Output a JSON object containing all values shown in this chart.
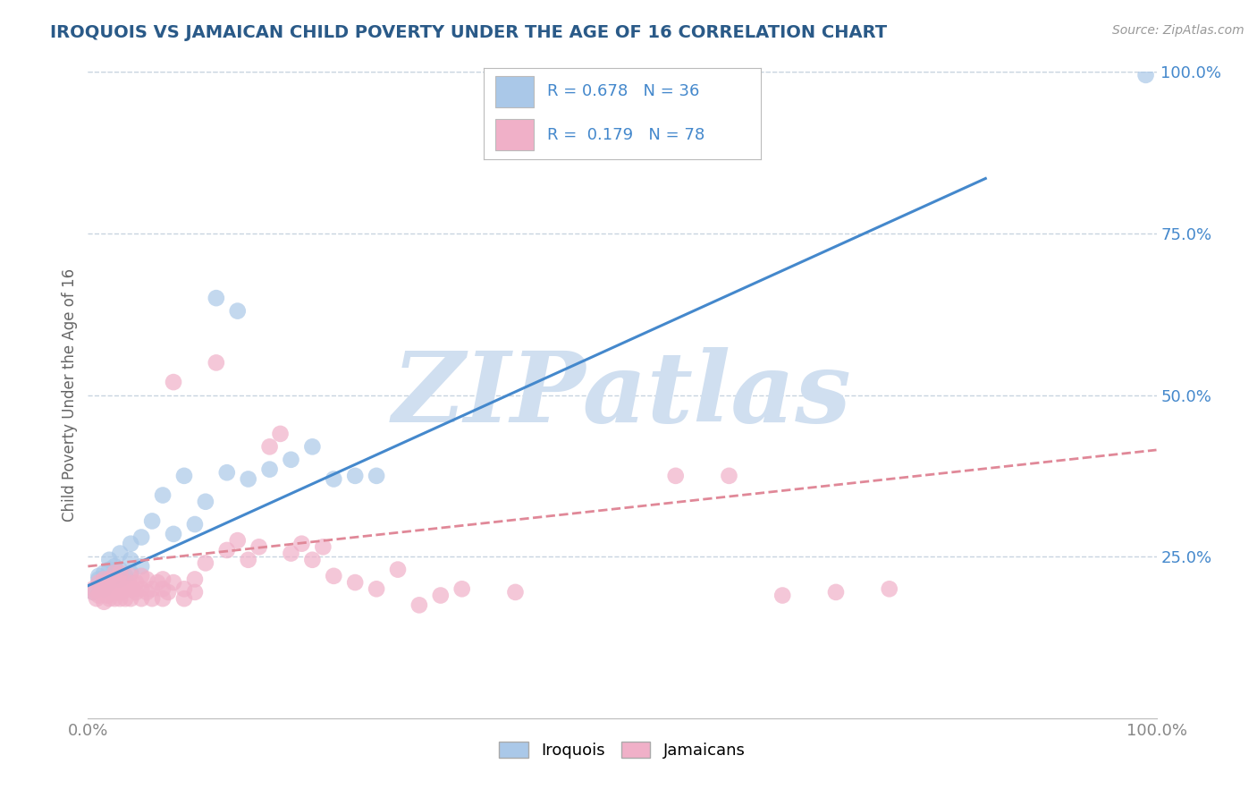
{
  "title": "IROQUOIS VS JAMAICAN CHILD POVERTY UNDER THE AGE OF 16 CORRELATION CHART",
  "source": "Source: ZipAtlas.com",
  "ylabel": "Child Poverty Under the Age of 16",
  "xlim": [
    0,
    1
  ],
  "ylim": [
    0,
    1
  ],
  "xticks": [
    0,
    0.25,
    0.5,
    0.75,
    1.0
  ],
  "xticklabels": [
    "0.0%",
    "",
    "",
    "",
    "100.0%"
  ],
  "yticks": [
    0.25,
    0.5,
    0.75,
    1.0
  ],
  "yticklabels": [
    "25.0%",
    "50.0%",
    "75.0%",
    "100.0%"
  ],
  "iroquois_color": "#aac8e8",
  "jamaicans_color": "#f0b0c8",
  "iroquois_line_color": "#4488cc",
  "jamaicans_line_color": "#e08898",
  "watermark_text": "ZIPatlas",
  "watermark_color": "#d0dff0",
  "background_color": "#ffffff",
  "grid_color": "#c8d4e0",
  "title_color": "#2a5a88",
  "tick_color": "#4488cc",
  "xtick_color": "#888888",
  "legend_text_color": "#4488cc",
  "iroquois_label": "Iroquois",
  "jamaicans_label": "Jamaicans",
  "iroq_line_x0": 0.0,
  "iroq_line_y0": 0.205,
  "iroq_line_x1": 0.84,
  "iroq_line_y1": 0.835,
  "jam_line_x0": 0.0,
  "jam_line_y0": 0.235,
  "jam_line_x1": 1.0,
  "jam_line_y1": 0.415,
  "iroq_x": [
    0.005,
    0.01,
    0.01,
    0.015,
    0.015,
    0.02,
    0.02,
    0.02,
    0.025,
    0.025,
    0.03,
    0.03,
    0.03,
    0.035,
    0.04,
    0.04,
    0.04,
    0.05,
    0.05,
    0.06,
    0.07,
    0.08,
    0.09,
    0.1,
    0.11,
    0.12,
    0.13,
    0.14,
    0.15,
    0.17,
    0.19,
    0.21,
    0.23,
    0.25,
    0.27,
    0.99
  ],
  "iroq_y": [
    0.195,
    0.215,
    0.22,
    0.2,
    0.225,
    0.21,
    0.23,
    0.245,
    0.225,
    0.235,
    0.215,
    0.23,
    0.255,
    0.22,
    0.225,
    0.245,
    0.27,
    0.235,
    0.28,
    0.305,
    0.345,
    0.285,
    0.375,
    0.3,
    0.335,
    0.65,
    0.38,
    0.63,
    0.37,
    0.385,
    0.4,
    0.42,
    0.37,
    0.375,
    0.375,
    0.995
  ],
  "jam_x": [
    0.005,
    0.005,
    0.008,
    0.01,
    0.01,
    0.012,
    0.015,
    0.015,
    0.015,
    0.018,
    0.018,
    0.02,
    0.02,
    0.02,
    0.022,
    0.025,
    0.025,
    0.025,
    0.025,
    0.028,
    0.028,
    0.03,
    0.03,
    0.03,
    0.03,
    0.032,
    0.035,
    0.035,
    0.038,
    0.04,
    0.04,
    0.04,
    0.042,
    0.045,
    0.045,
    0.05,
    0.05,
    0.05,
    0.055,
    0.055,
    0.06,
    0.06,
    0.065,
    0.07,
    0.07,
    0.07,
    0.075,
    0.08,
    0.08,
    0.09,
    0.09,
    0.1,
    0.1,
    0.11,
    0.12,
    0.13,
    0.14,
    0.15,
    0.16,
    0.17,
    0.18,
    0.19,
    0.2,
    0.21,
    0.22,
    0.23,
    0.25,
    0.27,
    0.29,
    0.31,
    0.33,
    0.35,
    0.4,
    0.55,
    0.6,
    0.65,
    0.7,
    0.75
  ],
  "jam_y": [
    0.195,
    0.2,
    0.185,
    0.19,
    0.21,
    0.195,
    0.18,
    0.2,
    0.215,
    0.19,
    0.205,
    0.185,
    0.2,
    0.215,
    0.195,
    0.185,
    0.195,
    0.21,
    0.225,
    0.195,
    0.21,
    0.185,
    0.195,
    0.21,
    0.225,
    0.195,
    0.185,
    0.2,
    0.21,
    0.185,
    0.2,
    0.22,
    0.2,
    0.195,
    0.21,
    0.185,
    0.2,
    0.22,
    0.195,
    0.215,
    0.185,
    0.2,
    0.21,
    0.185,
    0.2,
    0.215,
    0.195,
    0.21,
    0.52,
    0.185,
    0.2,
    0.195,
    0.215,
    0.24,
    0.55,
    0.26,
    0.275,
    0.245,
    0.265,
    0.42,
    0.44,
    0.255,
    0.27,
    0.245,
    0.265,
    0.22,
    0.21,
    0.2,
    0.23,
    0.175,
    0.19,
    0.2,
    0.195,
    0.375,
    0.375,
    0.19,
    0.195,
    0.2
  ]
}
